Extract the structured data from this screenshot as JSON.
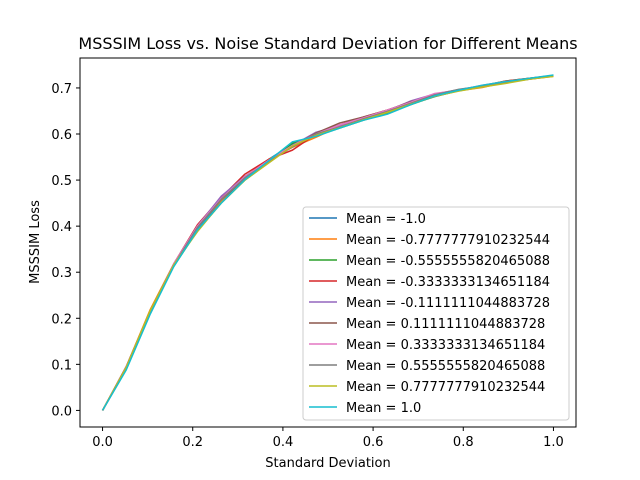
{
  "chart_data": {
    "type": "line",
    "title": "MSSSIM Loss vs. Noise Standard Deviation for Different Means",
    "xlabel": "Standard Deviation",
    "ylabel": "MSSSIM Loss",
    "xlim": [
      -0.05,
      1.05
    ],
    "ylim": [
      -0.036,
      0.765
    ],
    "xticks": [
      0.0,
      0.2,
      0.4,
      0.6,
      0.8,
      1.0
    ],
    "xtick_labels": [
      "0.0",
      "0.2",
      "0.4",
      "0.6",
      "0.8",
      "1.0"
    ],
    "yticks": [
      0.0,
      0.1,
      0.2,
      0.3,
      0.4,
      0.5,
      0.6,
      0.7
    ],
    "ytick_labels": [
      "0.0",
      "0.1",
      "0.2",
      "0.3",
      "0.4",
      "0.5",
      "0.6",
      "0.7"
    ],
    "grid": false,
    "legend_position": "lower-right",
    "x": [
      0.0,
      0.0526,
      0.1053,
      0.1579,
      0.2105,
      0.2632,
      0.3158,
      0.3684,
      0.4211,
      0.4737,
      0.5263,
      0.5789,
      0.6316,
      0.6842,
      0.7368,
      0.7895,
      0.8421,
      0.8947,
      0.9474,
      1.0
    ],
    "series": [
      {
        "name": "Mean = -1.0",
        "color": "#1f77b4",
        "values": [
          0.0,
          0.09,
          0.21,
          0.315,
          0.395,
          0.455,
          0.505,
          0.545,
          0.578,
          0.598,
          0.617,
          0.632,
          0.647,
          0.665,
          0.681,
          0.694,
          0.703,
          0.713,
          0.72,
          0.727
        ]
      },
      {
        "name": "Mean = -0.7777777910232544",
        "color": "#ff7f0e",
        "values": [
          0.0,
          0.095,
          0.218,
          0.318,
          0.398,
          0.456,
          0.507,
          0.545,
          0.571,
          0.593,
          0.617,
          0.634,
          0.651,
          0.667,
          0.683,
          0.694,
          0.701,
          0.713,
          0.719,
          0.725
        ]
      },
      {
        "name": "Mean = -0.5555555820465088",
        "color": "#2ca02c",
        "values": [
          0.0,
          0.092,
          0.212,
          0.313,
          0.39,
          0.45,
          0.5,
          0.538,
          0.58,
          0.596,
          0.613,
          0.63,
          0.645,
          0.664,
          0.682,
          0.694,
          0.705,
          0.715,
          0.721,
          0.727
        ]
      },
      {
        "name": "Mean = -0.3333333134651184",
        "color": "#d62728",
        "values": [
          0.0,
          0.095,
          0.215,
          0.318,
          0.403,
          0.462,
          0.513,
          0.545,
          0.565,
          0.6,
          0.62,
          0.637,
          0.652,
          0.668,
          0.685,
          0.696,
          0.704,
          0.715,
          0.721,
          0.727
        ]
      },
      {
        "name": "Mean = -0.1111111044883728",
        "color": "#9467bd",
        "values": [
          0.0,
          0.095,
          0.214,
          0.318,
          0.4,
          0.465,
          0.508,
          0.542,
          0.575,
          0.604,
          0.618,
          0.632,
          0.65,
          0.672,
          0.687,
          0.696,
          0.705,
          0.713,
          0.72,
          0.726
        ]
      },
      {
        "name": "Mean = 0.1111111044883728",
        "color": "#8c564b",
        "values": [
          0.0,
          0.092,
          0.213,
          0.316,
          0.398,
          0.458,
          0.503,
          0.54,
          0.573,
          0.602,
          0.624,
          0.637,
          0.652,
          0.67,
          0.683,
          0.694,
          0.703,
          0.712,
          0.719,
          0.726
        ]
      },
      {
        "name": "Mean = 0.3333333134651184",
        "color": "#e377c2",
        "values": [
          0.0,
          0.093,
          0.213,
          0.318,
          0.4,
          0.46,
          0.507,
          0.543,
          0.575,
          0.6,
          0.62,
          0.635,
          0.652,
          0.669,
          0.688,
          0.695,
          0.706,
          0.714,
          0.72,
          0.727
        ]
      },
      {
        "name": "Mean = 0.5555555820465088",
        "color": "#7f7f7f",
        "values": [
          0.0,
          0.092,
          0.212,
          0.315,
          0.397,
          0.458,
          0.505,
          0.54,
          0.572,
          0.6,
          0.615,
          0.633,
          0.649,
          0.667,
          0.685,
          0.697,
          0.704,
          0.713,
          0.72,
          0.726
        ]
      },
      {
        "name": "Mean = 0.7777777910232544",
        "color": "#bcbd22",
        "values": [
          0.0,
          0.094,
          0.216,
          0.316,
          0.388,
          0.451,
          0.5,
          0.537,
          0.574,
          0.597,
          0.614,
          0.631,
          0.647,
          0.665,
          0.682,
          0.693,
          0.702,
          0.71,
          0.719,
          0.725
        ]
      },
      {
        "name": "Mean = 1.0",
        "color": "#17becf",
        "values": [
          0.0,
          0.088,
          0.208,
          0.312,
          0.392,
          0.45,
          0.501,
          0.542,
          0.583,
          0.595,
          0.613,
          0.63,
          0.643,
          0.664,
          0.683,
          0.695,
          0.706,
          0.714,
          0.721,
          0.728
        ]
      }
    ]
  }
}
